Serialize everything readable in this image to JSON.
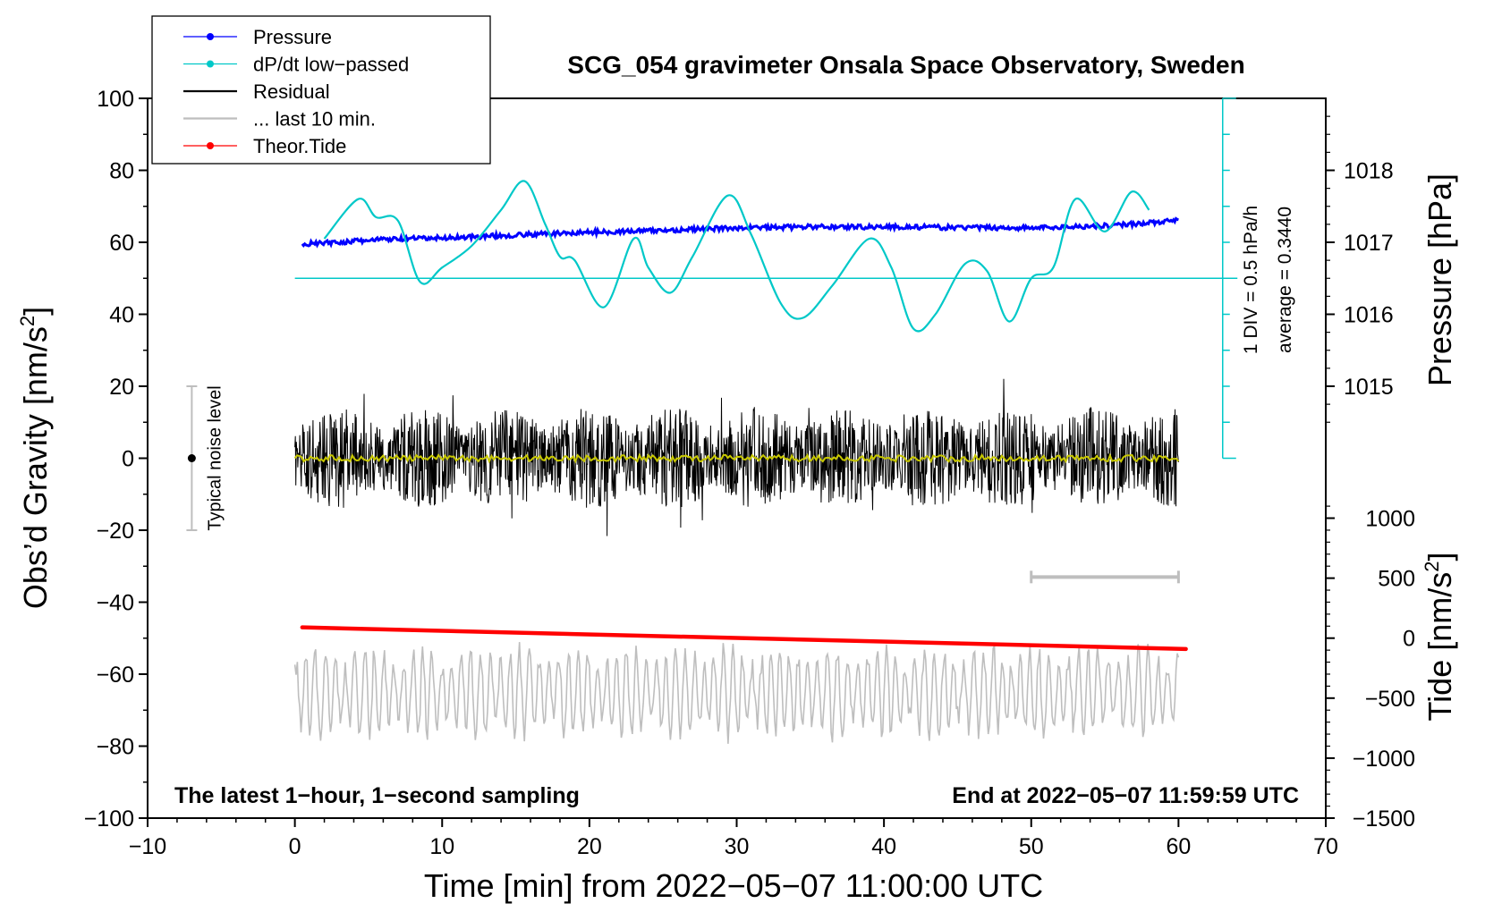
{
  "chart_data": {
    "type": "line",
    "title": "SCG_054 gravimeter Onsala Space Observatory, Sweden",
    "xlabel": "Time [min] from 2022−05−07 11:00:00 UTC",
    "ylabel_left": "Obs’d Gravity [nm/s",
    "ylabel_left_sup": "2",
    "ylabel_left_end": "]",
    "ylabel_right_pressure": "Pressure [hPa]",
    "ylabel_right_tide": "Tide [nm/s",
    "ylabel_right_tide_sup": "2",
    "ylabel_right_tide_end": "]",
    "xlim": [
      -10,
      70
    ],
    "ylim": [
      -100,
      100
    ],
    "x_ticks": [
      -10,
      0,
      10,
      20,
      30,
      40,
      50,
      60,
      70
    ],
    "x_tick_labels": [
      "−10",
      "0",
      "10",
      "20",
      "30",
      "40",
      "50",
      "60",
      "70"
    ],
    "y_ticks": [
      -100,
      -80,
      -60,
      -40,
      -20,
      0,
      20,
      40,
      60,
      80,
      100
    ],
    "y_tick_labels": [
      "−100",
      "−80",
      "−60",
      "−40",
      "−20",
      "0",
      "20",
      "40",
      "60",
      "80",
      "100"
    ],
    "pressure_axis": {
      "ticks": [
        1015,
        1016,
        1017,
        1018
      ],
      "tick_labels": [
        "1015",
        "1016",
        "1017",
        "1018"
      ],
      "ref_gravity": 60,
      "ref_value": 1017,
      "gravity_per_hpa": 20
    },
    "tide_axis": {
      "ticks": [
        -1500,
        -1000,
        -500,
        0,
        500,
        1000
      ],
      "tick_labels": [
        "−1500",
        "−1000",
        "−500",
        "0",
        "500",
        "1000"
      ],
      "ref_gravity_at_minus1500": -100,
      "gravity_per_500": 16.67
    },
    "dpdt_scale": {
      "label_div": "1 DIV = 0.5 hPa/h",
      "label_avg": "average = 0.3440",
      "baseline_gravity": 50,
      "x": 63
    },
    "noise_bar": {
      "label": "Typical noise level",
      "x": -7,
      "low": -20,
      "high": 20,
      "center": 0
    },
    "last10_marker": {
      "x0": 50,
      "x1": 60,
      "y": -33
    },
    "footer_left": "The latest 1−hour, 1−second sampling",
    "footer_right": "End at 2022−05−07 11:59:59 UTC",
    "legend": [
      {
        "label": "Pressure",
        "color": "#0000ff",
        "marker": true
      },
      {
        "label": "dP/dt low−passed",
        "color": "#00c8c8",
        "marker": true
      },
      {
        "label": "Residual",
        "color": "#000000",
        "marker": false
      },
      {
        "label": "... last 10 min.",
        "color": "#bebebe",
        "marker": false
      },
      {
        "label": "Theor.Tide",
        "color": "#ff0000",
        "marker": true
      }
    ],
    "series": [
      {
        "name": "Pressure",
        "color": "#0000ff",
        "x": [
          0.5,
          3,
          6,
          10,
          15,
          20,
          25,
          30,
          35,
          40,
          45,
          50,
          55,
          60
        ],
        "y": [
          59.5,
          60,
          60.8,
          61.2,
          62,
          62.8,
          63.3,
          64,
          64.3,
          64.3,
          64.1,
          64,
          64.6,
          66
        ]
      },
      {
        "name": "dP/dt low−passed",
        "color": "#00c8c8",
        "x": [
          2,
          4.3,
          5.5,
          7,
          8.5,
          10,
          12,
          14,
          15.6,
          17,
          18,
          19,
          21,
          23,
          24,
          25.5,
          27,
          29.4,
          31,
          33,
          34.5,
          36.5,
          39,
          40.5,
          42,
          43.5,
          45.5,
          47,
          48.5,
          50,
          51.5,
          53,
          55,
          56.8,
          58
        ],
        "y": [
          61,
          72,
          67,
          66,
          49,
          53,
          59,
          69,
          77,
          65,
          56,
          55,
          42,
          61,
          53,
          46,
          56,
          73,
          62,
          43,
          39,
          48,
          61,
          53,
          36,
          40,
          54,
          52,
          38,
          50,
          53,
          72,
          63,
          74,
          69
        ]
      },
      {
        "name": "Residual",
        "color": "#000000",
        "x": [
          0,
          60
        ],
        "y": [
          0,
          0
        ],
        "amplitude": 14,
        "min": -25,
        "max": 30
      },
      {
        "name": "... last 10 min.",
        "color": "#bebebe",
        "x": [
          0,
          60
        ],
        "center": -65,
        "amplitude": 12,
        "min": -85,
        "max": -40
      },
      {
        "name": "Theor.Tide",
        "color": "#ff0000",
        "x": [
          0.5,
          60.5
        ],
        "y": [
          -47,
          -53
        ]
      },
      {
        "name": "Residual smoothed",
        "color": "#c8c800",
        "x": [
          0,
          60
        ],
        "y": [
          0,
          0
        ]
      }
    ]
  }
}
